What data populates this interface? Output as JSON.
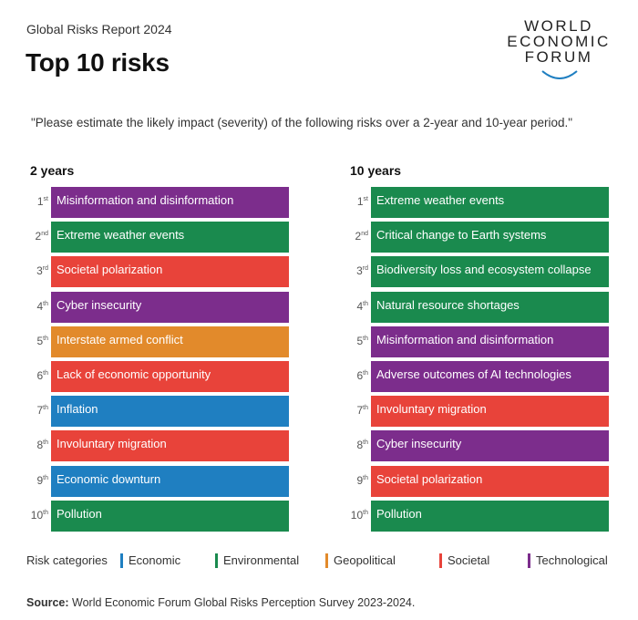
{
  "header": {
    "report_name": "Global Risks Report 2024",
    "title": "Top 10 risks",
    "logo_lines": [
      "WORLD",
      "ECONOMIC",
      "FORUM"
    ]
  },
  "question": "\"Please estimate the likely impact (severity) of the following risks over a 2-year and 10-year period.\"",
  "categories": {
    "Economic": "#1f7fc1",
    "Environmental": "#1a8a4e",
    "Geopolitical": "#e28a2b",
    "Societal": "#e8433a",
    "Technological": "#7c2d8c"
  },
  "chart_data": {
    "type": "table",
    "tables": [
      {
        "heading": "2 years",
        "rows": [
          {
            "rank": "1",
            "suffix": "st",
            "label": "Misinformation and disinformation",
            "category": "Technological"
          },
          {
            "rank": "2",
            "suffix": "nd",
            "label": "Extreme weather events",
            "category": "Environmental"
          },
          {
            "rank": "3",
            "suffix": "rd",
            "label": "Societal polarization",
            "category": "Societal"
          },
          {
            "rank": "4",
            "suffix": "th",
            "label": "Cyber insecurity",
            "category": "Technological"
          },
          {
            "rank": "5",
            "suffix": "th",
            "label": "Interstate armed conflict",
            "category": "Geopolitical"
          },
          {
            "rank": "6",
            "suffix": "th",
            "label": "Lack of economic opportunity",
            "category": "Societal"
          },
          {
            "rank": "7",
            "suffix": "th",
            "label": "Inflation",
            "category": "Economic"
          },
          {
            "rank": "8",
            "suffix": "th",
            "label": "Involuntary migration",
            "category": "Societal"
          },
          {
            "rank": "9",
            "suffix": "th",
            "label": "Economic downturn",
            "category": "Economic"
          },
          {
            "rank": "10",
            "suffix": "th",
            "label": "Pollution",
            "category": "Environmental"
          }
        ]
      },
      {
        "heading": "10 years",
        "rows": [
          {
            "rank": "1",
            "suffix": "st",
            "label": "Extreme weather events",
            "category": "Environmental"
          },
          {
            "rank": "2",
            "suffix": "nd",
            "label": "Critical change to Earth systems",
            "category": "Environmental"
          },
          {
            "rank": "3",
            "suffix": "rd",
            "label": "Biodiversity loss and ecosystem collapse",
            "category": "Environmental"
          },
          {
            "rank": "4",
            "suffix": "th",
            "label": "Natural resource shortages",
            "category": "Environmental"
          },
          {
            "rank": "5",
            "suffix": "th",
            "label": "Misinformation and disinformation",
            "category": "Technological"
          },
          {
            "rank": "6",
            "suffix": "th",
            "label": "Adverse outcomes of AI technologies",
            "category": "Technological"
          },
          {
            "rank": "7",
            "suffix": "th",
            "label": "Involuntary migration",
            "category": "Societal"
          },
          {
            "rank": "8",
            "suffix": "th",
            "label": "Cyber insecurity",
            "category": "Technological"
          },
          {
            "rank": "9",
            "suffix": "th",
            "label": "Societal polarization",
            "category": "Societal"
          },
          {
            "rank": "10",
            "suffix": "th",
            "label": "Pollution",
            "category": "Environmental"
          }
        ]
      }
    ]
  },
  "legend": {
    "title": "Risk categories",
    "items": [
      "Economic",
      "Environmental",
      "Geopolitical",
      "Societal",
      "Technological"
    ]
  },
  "source": {
    "prefix": "Source:",
    "text": "World Economic Forum Global Risks Perception Survey 2023-2024."
  }
}
